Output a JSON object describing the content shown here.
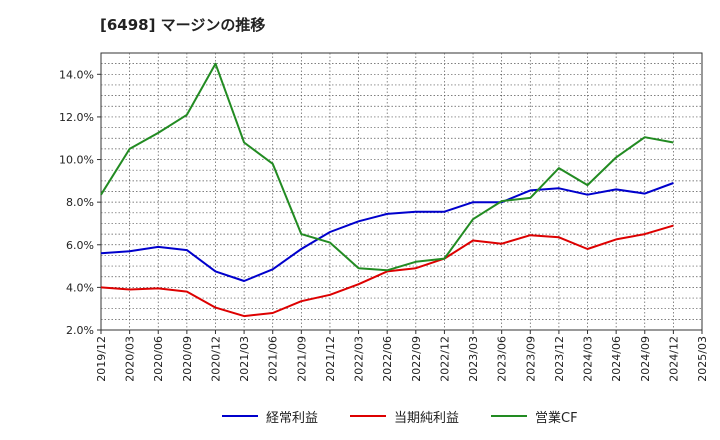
{
  "chart_data": {
    "type": "line",
    "title": "[6498]  マージンの推移",
    "xlabel": "",
    "ylabel": "",
    "ylim": [
      2.0,
      15.0
    ],
    "yticks": [
      "2.0%",
      "4.0%",
      "6.0%",
      "8.0%",
      "10.0%",
      "12.0%",
      "14.0%"
    ],
    "ytick_values": [
      2,
      4,
      6,
      8,
      10,
      12,
      14
    ],
    "categories": [
      "2019/12",
      "2020/03",
      "2020/06",
      "2020/09",
      "2020/12",
      "2021/03",
      "2021/06",
      "2021/09",
      "2021/12",
      "2022/03",
      "2022/06",
      "2022/09",
      "2022/12",
      "2023/03",
      "2023/06",
      "2023/09",
      "2023/12",
      "2024/03",
      "2024/06",
      "2024/09",
      "2024/12",
      "2025/03"
    ],
    "grid": true,
    "legend_position": "bottom",
    "series": [
      {
        "name": "経常利益",
        "color": "#0000cc",
        "values": [
          5.6,
          5.7,
          5.9,
          5.75,
          4.75,
          4.3,
          4.85,
          5.8,
          6.6,
          7.1,
          7.45,
          7.55,
          7.55,
          8.0,
          8.0,
          8.55,
          8.65,
          8.35,
          8.6,
          8.4,
          8.9,
          null
        ]
      },
      {
        "name": "当期純利益",
        "color": "#dd0000",
        "values": [
          4.0,
          3.9,
          3.95,
          3.8,
          3.05,
          2.65,
          2.8,
          3.35,
          3.65,
          4.15,
          4.75,
          4.9,
          5.35,
          6.2,
          6.05,
          6.45,
          6.35,
          5.8,
          6.25,
          6.5,
          6.9,
          null
        ]
      },
      {
        "name": "営業CF",
        "color": "#228b22",
        "values": [
          8.35,
          10.5,
          11.25,
          12.1,
          14.5,
          10.8,
          9.8,
          6.5,
          6.1,
          4.9,
          4.8,
          5.2,
          5.35,
          7.2,
          8.05,
          8.2,
          9.6,
          8.8,
          10.1,
          11.05,
          10.8,
          null
        ]
      }
    ]
  }
}
